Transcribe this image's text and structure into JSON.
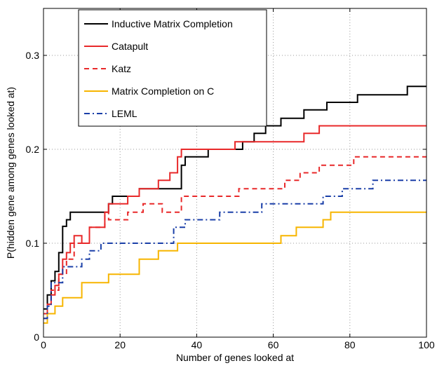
{
  "chart_data": {
    "type": "line",
    "title": "",
    "xlabel": "Number of genes looked at",
    "ylabel": "P(hidden gene among genes looked at)",
    "xlim": [
      0,
      100
    ],
    "ylim": [
      0,
      0.35
    ],
    "x_ticks": [
      0,
      20,
      40,
      60,
      80,
      100
    ],
    "y_ticks": [
      0,
      0.1,
      0.2,
      0.3
    ],
    "x_tick_labels": [
      "0",
      "20",
      "40",
      "60",
      "80",
      "100"
    ],
    "y_tick_labels": [
      "0",
      "0.1",
      "0.2",
      "0.3"
    ],
    "grid": true,
    "legend_position": "top-left",
    "series": [
      {
        "name": "Inductive Matrix Completion",
        "color": "#000000",
        "dash": "solid",
        "x": [
          0,
          1,
          1,
          2,
          2,
          3,
          3,
          4,
          4,
          5,
          5,
          6,
          6,
          7,
          7,
          17,
          17,
          18,
          18,
          25,
          25,
          36,
          36,
          37,
          37,
          43,
          43,
          52,
          52,
          55,
          55,
          58,
          58,
          62,
          62,
          68,
          68,
          74,
          74,
          82,
          82,
          95,
          95,
          100
        ],
        "y": [
          0.03,
          0.03,
          0.045,
          0.045,
          0.06,
          0.06,
          0.07,
          0.07,
          0.09,
          0.09,
          0.118,
          0.118,
          0.125,
          0.125,
          0.133,
          0.133,
          0.142,
          0.142,
          0.15,
          0.15,
          0.158,
          0.158,
          0.183,
          0.183,
          0.192,
          0.192,
          0.2,
          0.2,
          0.208,
          0.208,
          0.217,
          0.217,
          0.225,
          0.225,
          0.233,
          0.233,
          0.242,
          0.242,
          0.25,
          0.25,
          0.258,
          0.258,
          0.267,
          0.267
        ]
      },
      {
        "name": "Catapult",
        "color": "#e8292a",
        "dash": "solid",
        "x": [
          0,
          1,
          1,
          2,
          2,
          3,
          3,
          4,
          4,
          5,
          5,
          6,
          6,
          7,
          7,
          8,
          8,
          10,
          10,
          12,
          12,
          16,
          16,
          17,
          17,
          22,
          22,
          25,
          25,
          30,
          30,
          33,
          33,
          35,
          35,
          36,
          36,
          50,
          50,
          68,
          68,
          72,
          72,
          100
        ],
        "y": [
          0.025,
          0.025,
          0.035,
          0.035,
          0.045,
          0.045,
          0.055,
          0.055,
          0.067,
          0.067,
          0.083,
          0.083,
          0.09,
          0.09,
          0.1,
          0.1,
          0.108,
          0.108,
          0.1,
          0.1,
          0.117,
          0.117,
          0.133,
          0.133,
          0.142,
          0.142,
          0.15,
          0.15,
          0.158,
          0.158,
          0.167,
          0.167,
          0.175,
          0.175,
          0.192,
          0.192,
          0.2,
          0.2,
          0.208,
          0.208,
          0.217,
          0.217,
          0.225,
          0.225
        ]
      },
      {
        "name": "Katz",
        "color": "#e8292a",
        "dash": "dashed",
        "x": [
          0,
          1,
          1,
          2,
          2,
          4,
          4,
          6,
          6,
          8,
          8,
          12,
          12,
          16,
          16,
          17,
          17,
          22,
          22,
          26,
          26,
          31,
          31,
          36,
          36,
          51,
          51,
          63,
          63,
          67,
          67,
          72,
          72,
          81,
          81,
          100
        ],
        "y": [
          0.02,
          0.02,
          0.035,
          0.035,
          0.05,
          0.05,
          0.067,
          0.067,
          0.083,
          0.083,
          0.1,
          0.1,
          0.117,
          0.117,
          0.133,
          0.133,
          0.125,
          0.125,
          0.133,
          0.133,
          0.142,
          0.142,
          0.133,
          0.133,
          0.15,
          0.15,
          0.158,
          0.158,
          0.167,
          0.167,
          0.175,
          0.175,
          0.183,
          0.183,
          0.192,
          0.192
        ]
      },
      {
        "name": "Matrix Completion on C",
        "color": "#f7b500",
        "dash": "solid",
        "x": [
          0,
          1,
          1,
          3,
          3,
          5,
          5,
          10,
          10,
          17,
          17,
          25,
          25,
          30,
          30,
          35,
          35,
          62,
          62,
          66,
          66,
          73,
          73,
          75,
          75,
          100
        ],
        "y": [
          0.015,
          0.015,
          0.025,
          0.025,
          0.033,
          0.033,
          0.042,
          0.042,
          0.058,
          0.058,
          0.067,
          0.067,
          0.083,
          0.083,
          0.092,
          0.092,
          0.1,
          0.1,
          0.108,
          0.108,
          0.117,
          0.117,
          0.125,
          0.125,
          0.133,
          0.133
        ]
      },
      {
        "name": "LEML",
        "color": "#1a3fa8",
        "dash": "dashdot",
        "x": [
          0,
          1,
          1,
          2,
          2,
          5,
          5,
          10,
          10,
          12,
          12,
          15,
          15,
          34,
          34,
          37,
          37,
          46,
          46,
          57,
          57,
          73,
          73,
          78,
          78,
          86,
          86,
          100
        ],
        "y": [
          0.02,
          0.02,
          0.033,
          0.033,
          0.058,
          0.058,
          0.075,
          0.075,
          0.083,
          0.083,
          0.092,
          0.092,
          0.1,
          0.1,
          0.117,
          0.117,
          0.125,
          0.125,
          0.133,
          0.133,
          0.142,
          0.142,
          0.15,
          0.15,
          0.158,
          0.158,
          0.167,
          0.167
        ]
      }
    ]
  }
}
